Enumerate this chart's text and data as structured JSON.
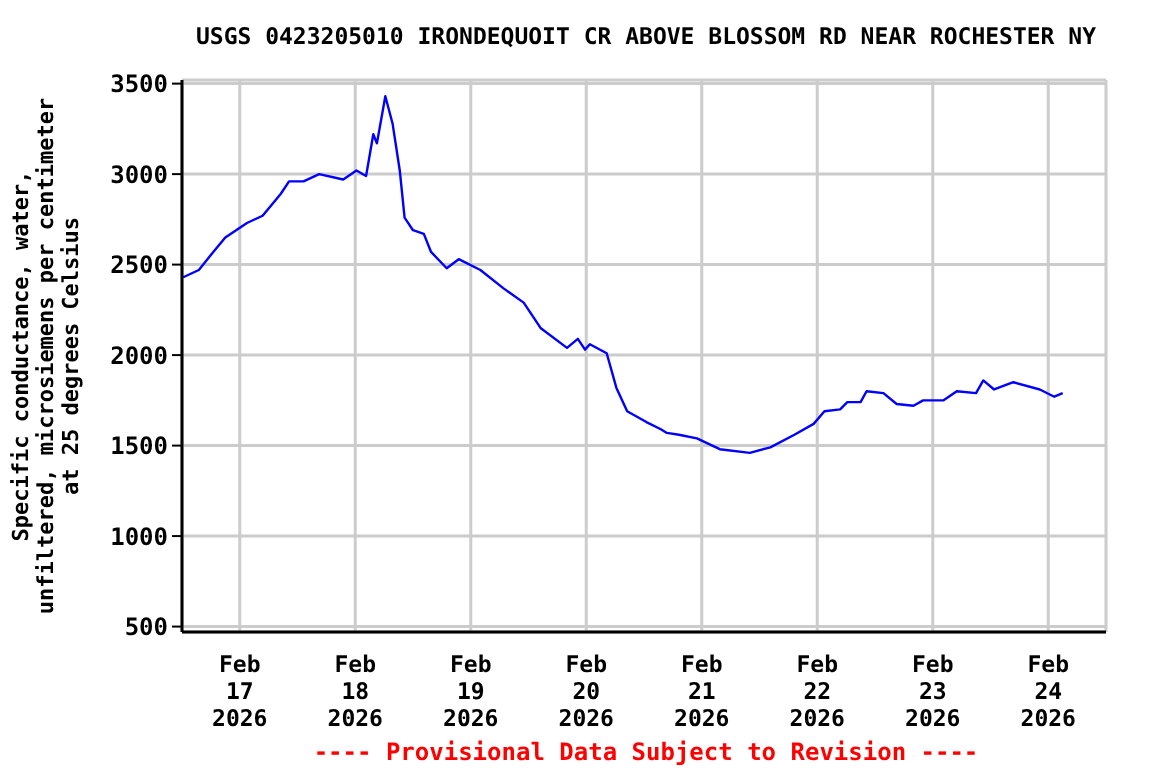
{
  "chart_data": {
    "type": "line",
    "title": "USGS 0423205010 IRONDEQUOIT CR ABOVE BLOSSOM RD NEAR ROCHESTER NY",
    "ylabel": "Specific conductance, water, unfiltered, microsiemens per centimeter at 25 degrees Celsius",
    "annotations": [
      "---- Provisional Data Subject to Revision ----"
    ],
    "x": [
      "2026-02-16T12:15",
      "2026-02-16T15:30",
      "2026-02-16T18:30",
      "2026-02-16T21:00",
      "2026-02-17T01:30",
      "2026-02-17T04:45",
      "2026-02-17T08:30",
      "2026-02-17T10:15",
      "2026-02-17T13:15",
      "2026-02-17T16:30",
      "2026-02-17T21:30",
      "2026-02-18T00:15",
      "2026-02-18T02:15",
      "2026-02-18T03:45",
      "2026-02-18T04:30",
      "2026-02-18T06:15",
      "2026-02-18T07:45",
      "2026-02-18T09:15",
      "2026-02-18T10:15",
      "2026-02-18T12:00",
      "2026-02-18T14:15",
      "2026-02-18T15:45",
      "2026-02-18T19:00",
      "2026-02-18T21:30",
      "2026-02-19T02:00",
      "2026-02-19T06:45",
      "2026-02-19T11:00",
      "2026-02-19T14:30",
      "2026-02-19T20:00",
      "2026-02-19T22:15",
      "2026-02-19T23:45",
      "2026-02-20T00:45",
      "2026-02-20T04:15",
      "2026-02-20T06:15",
      "2026-02-20T08:30",
      "2026-02-20T12:30",
      "2026-02-20T15:30",
      "2026-02-20T16:45",
      "2026-02-20T19:15",
      "2026-02-20T23:00",
      "2026-02-21T03:45",
      "2026-02-21T10:00",
      "2026-02-21T14:15",
      "2026-02-21T19:15",
      "2026-02-21T23:15",
      "2026-02-22T01:30",
      "2026-02-22T04:45",
      "2026-02-22T06:15",
      "2026-02-22T09:00",
      "2026-02-22T10:15",
      "2026-02-22T13:45",
      "2026-02-22T16:30",
      "2026-02-22T20:00",
      "2026-02-22T22:00",
      "2026-02-23T02:15",
      "2026-02-23T05:00",
      "2026-02-23T09:00",
      "2026-02-23T10:30",
      "2026-02-23T12:45",
      "2026-02-23T16:45",
      "2026-02-23T22:15",
      "2026-02-24T01:15",
      "2026-02-24T03:00"
    ],
    "series": [
      {
        "color": "#0000ff",
        "values": [
          2430,
          2470,
          2570,
          2650,
          2730,
          2770,
          2890,
          2960,
          2960,
          3000,
          2970,
          3020,
          2990,
          3220,
          3170,
          3430,
          3280,
          3020,
          2760,
          2690,
          2670,
          2570,
          2480,
          2530,
          2470,
          2370,
          2290,
          2150,
          2040,
          2090,
          2030,
          2060,
          2010,
          1820,
          1690,
          1630,
          1590,
          1570,
          1560,
          1540,
          1480,
          1460,
          1490,
          1560,
          1620,
          1690,
          1700,
          1740,
          1740,
          1800,
          1790,
          1730,
          1720,
          1750,
          1750,
          1800,
          1790,
          1860,
          1810,
          1850,
          1810,
          1770,
          1790
        ]
      }
    ],
    "xlim": [
      "2026-02-16T12:00",
      "2026-02-24T12:00"
    ],
    "xticks": [
      {
        "value": "2026-02-17",
        "label": "Feb 17 2026"
      },
      {
        "value": "2026-02-18",
        "label": "Feb 18 2026"
      },
      {
        "value": "2026-02-19",
        "label": "Feb 19 2026"
      },
      {
        "value": "2026-02-20",
        "label": "Feb 20 2026"
      },
      {
        "value": "2026-02-21",
        "label": "Feb 21 2026"
      },
      {
        "value": "2026-02-22",
        "label": "Feb 22 2026"
      },
      {
        "value": "2026-02-23",
        "label": "Feb 23 2026"
      },
      {
        "value": "2026-02-24",
        "label": "Feb 24 2026"
      }
    ],
    "ylim": [
      470,
      3520
    ],
    "yticks": [
      500,
      1000,
      1500,
      2000,
      2500,
      3000,
      3500
    ],
    "grid": true,
    "marker": "none",
    "line_style": "solid",
    "legend": false
  }
}
